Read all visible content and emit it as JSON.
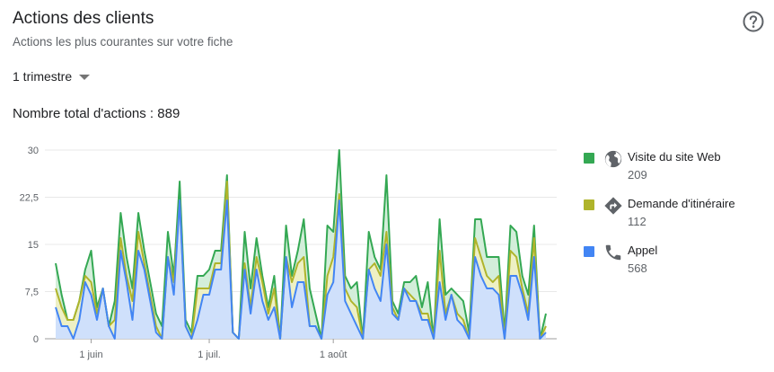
{
  "header": {
    "title": "Actions des clients",
    "subtitle": "Actions les plus courantes sur votre fiche",
    "help_icon": "help-circle-icon"
  },
  "period_selector": {
    "selected": "1 trimestre"
  },
  "total": {
    "text": "Nombre total d'actions : 889"
  },
  "legend": [
    {
      "name": "Visite du site Web",
      "count": "209",
      "color": "#34a853",
      "icon": "globe-icon"
    },
    {
      "name": "Demande d'itinéraire",
      "count": "112",
      "color": "#afb42b",
      "icon": "directions-icon"
    },
    {
      "name": "Appel",
      "count": "568",
      "color": "#4285f4",
      "icon": "phone-icon"
    }
  ],
  "chart_data": {
    "type": "area",
    "stacked": true,
    "y_ticks": [
      "0",
      "7,5",
      "15",
      "22,5",
      "30"
    ],
    "ylim": [
      0,
      30
    ],
    "x_labels": [
      {
        "label": "1 juin",
        "index": 6
      },
      {
        "label": "1 juil.",
        "index": 26
      },
      {
        "label": "1 août",
        "index": 47
      }
    ],
    "series": [
      {
        "name": "Appel",
        "color": "#4285f4",
        "values": [
          5,
          2,
          2,
          0,
          3,
          9,
          7,
          3,
          8,
          2,
          0,
          14,
          9,
          3,
          14,
          11,
          6,
          1,
          0,
          13,
          7,
          22,
          2,
          0,
          3,
          7,
          7,
          11,
          11,
          22,
          1,
          0,
          11,
          4,
          11,
          6,
          3,
          5,
          0,
          13,
          5,
          9,
          9,
          2,
          2,
          0,
          7,
          9,
          22,
          6,
          4,
          2,
          0,
          11,
          8,
          6,
          15,
          4,
          3,
          8,
          6,
          6,
          3,
          3,
          0,
          9,
          3,
          7,
          3,
          2,
          0,
          13,
          10,
          8,
          8,
          7,
          0,
          10,
          10,
          7,
          3,
          13,
          0,
          1
        ]
      },
      {
        "name": "Demande d'itinéraire",
        "color": "#afb42b",
        "values": [
          3,
          3,
          1,
          3,
          3,
          1,
          2,
          1,
          0,
          0,
          3,
          2,
          1,
          3,
          3,
          1,
          1,
          1,
          0,
          0,
          2,
          0,
          0,
          0,
          5,
          1,
          1,
          1,
          1,
          3,
          0,
          0,
          1,
          1,
          2,
          3,
          1,
          3,
          0,
          0,
          4,
          3,
          4,
          0,
          0,
          0,
          3,
          4,
          1,
          2,
          2,
          3,
          0,
          0,
          4,
          4,
          2,
          1,
          0,
          0,
          1,
          0,
          1,
          1,
          0,
          5,
          1,
          0,
          1,
          1,
          0,
          3,
          3,
          2,
          1,
          3,
          0,
          4,
          3,
          1,
          1,
          3,
          0,
          1
        ]
      },
      {
        "name": "Visite du site Web",
        "color": "#34a853",
        "values": [
          4,
          2,
          0,
          0,
          0,
          1,
          5,
          1,
          0,
          0,
          3,
          4,
          3,
          2,
          3,
          2,
          2,
          2,
          2,
          4,
          1,
          3,
          1,
          1,
          2,
          2,
          3,
          2,
          2,
          1,
          0,
          0,
          5,
          3,
          3,
          1,
          1,
          2,
          0,
          5,
          1,
          2,
          6,
          6,
          2,
          0,
          8,
          4,
          7,
          2,
          2,
          4,
          0,
          6,
          1,
          1,
          9,
          1,
          1,
          1,
          2,
          4,
          1,
          5,
          0,
          5,
          3,
          1,
          3,
          3,
          1,
          3,
          6,
          3,
          4,
          3,
          1,
          4,
          4,
          2,
          3,
          2,
          0,
          2
        ]
      }
    ]
  }
}
